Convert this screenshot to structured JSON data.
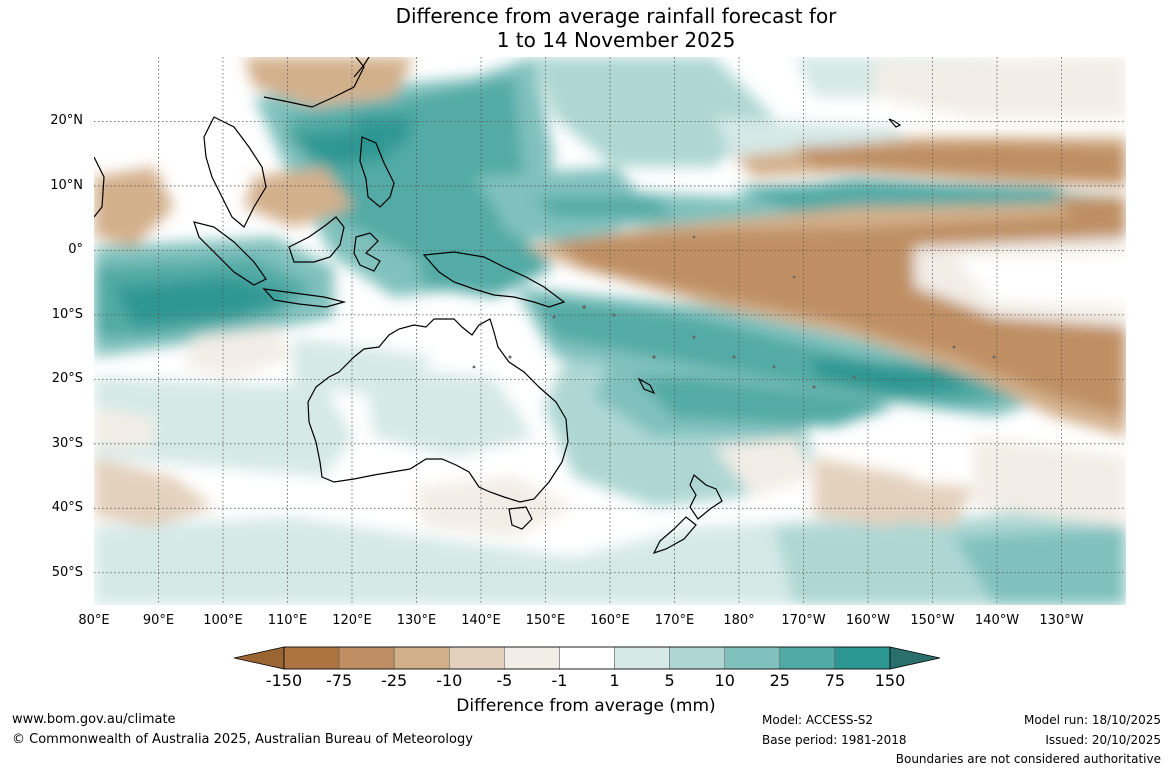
{
  "title": {
    "line1": "Difference from average rainfall forecast for",
    "line2": "1 to 14 November 2025"
  },
  "map": {
    "lat_labels": [
      "20°N",
      "10°N",
      "0°",
      "10°S",
      "20°S",
      "30°S",
      "40°S",
      "50°S"
    ],
    "lon_labels": [
      "80°E",
      "90°E",
      "100°E",
      "110°E",
      "120°E",
      "130°E",
      "140°E",
      "150°E",
      "160°E",
      "170°E",
      "180°",
      "170°W",
      "160°W",
      "150°W",
      "140°W",
      "130°W"
    ],
    "lat_range": [
      -55,
      30
    ],
    "lon_range": [
      80,
      240
    ],
    "grid": "dotted"
  },
  "colorbar": {
    "title": "Difference from average (mm)",
    "ticks": [
      "-150",
      "-75",
      "-25",
      "-10",
      "-5",
      "-1",
      "1",
      "5",
      "10",
      "25",
      "75",
      "150"
    ],
    "colors": [
      "#ab7440",
      "#bf8f63",
      "#d3b08c",
      "#e4d1bd",
      "#f2ede6",
      "#ffffff",
      "#d5e9e7",
      "#aed7d4",
      "#80c1bd",
      "#52aaa6",
      "#2d9793",
      "#2b6f6c"
    ],
    "min_extend_color": "#9b6533",
    "max_extend_color": "#2b6f6c"
  },
  "footer": {
    "url": "www.bom.gov.au/climate",
    "copyright": "© Commonwealth of Australia 2025, Australian Bureau of Meteorology",
    "model": "Model: ACCESS-S2",
    "base_period": "Base period: 1981-2018",
    "model_run": "Model run: 18/10/2025",
    "issued": "Issued: 20/10/2025",
    "disclaimer": "Boundaries are not considered authoritative"
  }
}
